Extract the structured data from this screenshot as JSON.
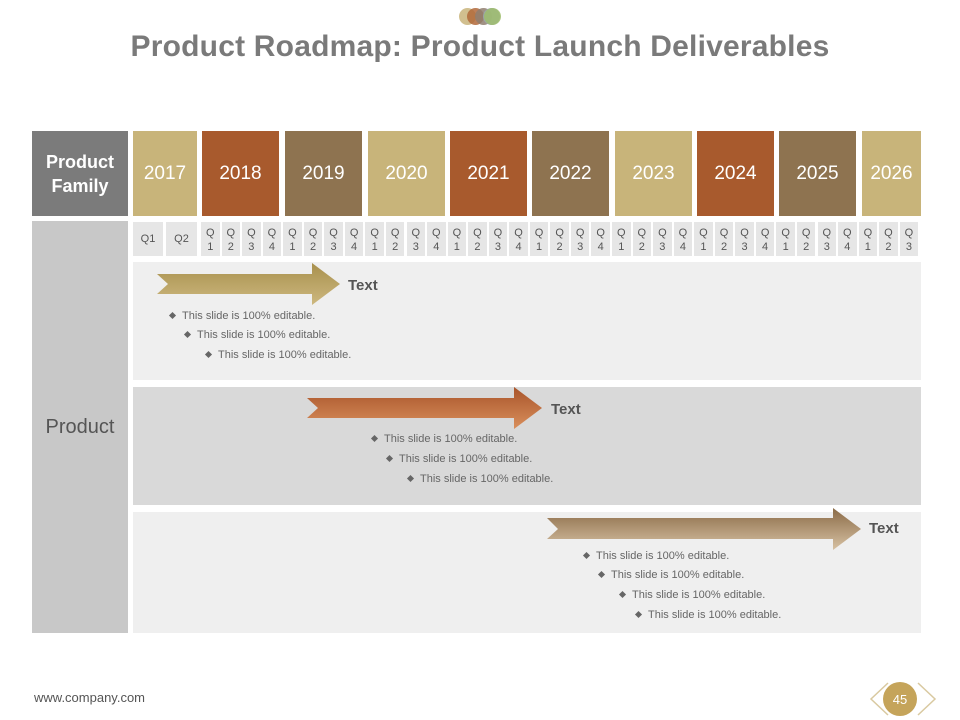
{
  "title": "Product Roadmap: Product Launch Deliverables",
  "header": {
    "product_family": "Product Family",
    "years": [
      "2017",
      "2018",
      "2019",
      "2020",
      "2021",
      "2022",
      "2023",
      "2024",
      "2025",
      "2026"
    ]
  },
  "quarters": {
    "first_year": [
      "Q1",
      "Q2"
    ],
    "stacked": [
      [
        "Q",
        "1"
      ],
      [
        "Q",
        "2"
      ],
      [
        "Q",
        "3"
      ],
      [
        "Q",
        "4"
      ],
      [
        "Q",
        "1"
      ],
      [
        "Q",
        "2"
      ],
      [
        "Q",
        "3"
      ],
      [
        "Q",
        "4"
      ],
      [
        "Q",
        "1"
      ],
      [
        "Q",
        "2"
      ],
      [
        "Q",
        "3"
      ],
      [
        "Q",
        "4"
      ],
      [
        "Q",
        "1"
      ],
      [
        "Q",
        "2"
      ],
      [
        "Q",
        "3"
      ],
      [
        "Q",
        "4"
      ],
      [
        "Q",
        "1"
      ],
      [
        "Q",
        "2"
      ],
      [
        "Q",
        "3"
      ],
      [
        "Q",
        "4"
      ],
      [
        "Q",
        "1"
      ],
      [
        "Q",
        "2"
      ],
      [
        "Q",
        "3"
      ],
      [
        "Q",
        "4"
      ],
      [
        "Q",
        "1"
      ],
      [
        "Q",
        "2"
      ],
      [
        "Q",
        "3"
      ],
      [
        "Q",
        "4"
      ],
      [
        "Q",
        "1"
      ],
      [
        "Q",
        "2"
      ],
      [
        "Q",
        "3"
      ],
      [
        "Q",
        "4"
      ],
      [
        "Q",
        "1"
      ],
      [
        "Q",
        "2"
      ],
      [
        "Q",
        "3"
      ]
    ]
  },
  "row_label": "Product",
  "deliverables": [
    {
      "label": "Text",
      "bullets": [
        "This slide is 100% editable.",
        "This slide is 100% editable.",
        "This slide is 100% editable."
      ]
    },
    {
      "label": "Text",
      "bullets": [
        "This slide is 100% editable.",
        "This slide is 100% editable.",
        "This slide is 100% editable."
      ]
    },
    {
      "label": "Text",
      "bullets": [
        "This slide is 100% editable.",
        "This slide is 100% editable.",
        "This slide is 100% editable.",
        "This slide is 100% editable."
      ]
    }
  ],
  "footer": {
    "url": "www.company.com",
    "page_number": "45"
  },
  "colors": {
    "tan": "#c8b47a",
    "rust": "#a85a2d",
    "brown": "#8e7350",
    "gray_header": "#7b7b7b",
    "badge": "#c5a45a"
  }
}
